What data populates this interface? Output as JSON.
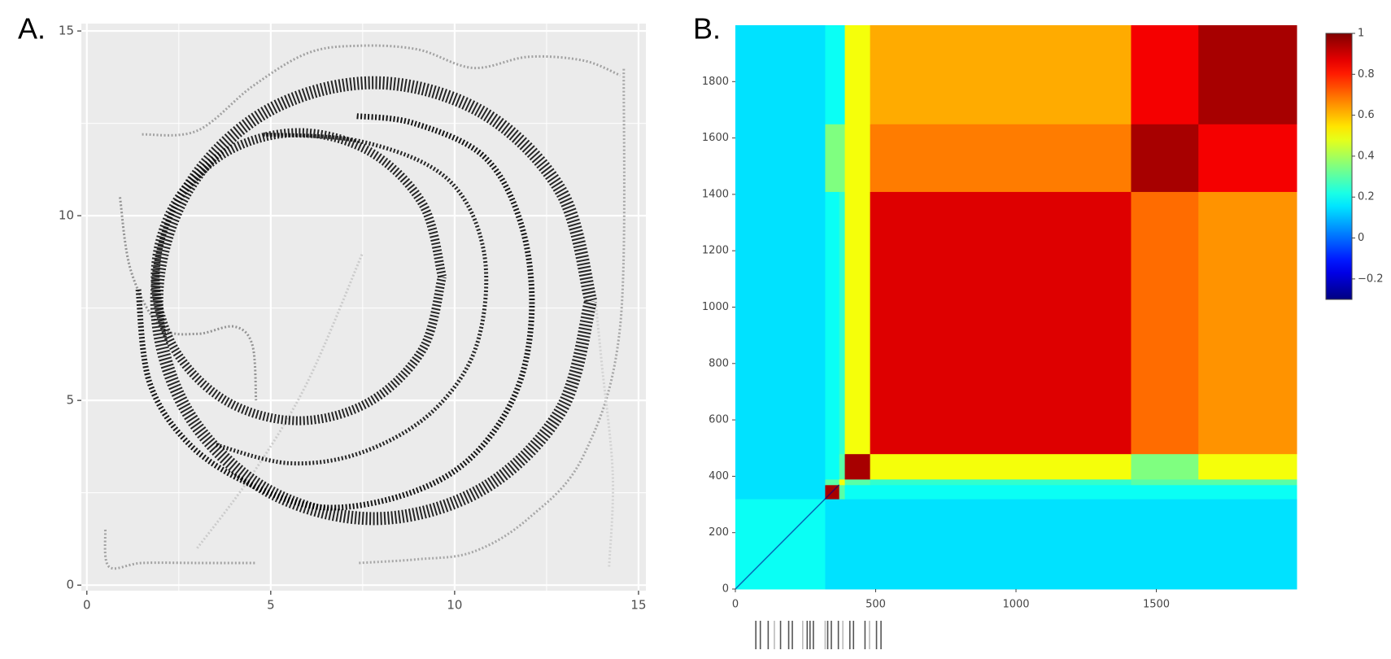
{
  "panel_labels": [
    "A.",
    "B."
  ],
  "chart_data": [
    {
      "type": "trajectory",
      "xlim": [
        -0.15,
        15.2
      ],
      "ylim": [
        -0.15,
        15.2
      ],
      "xticks": [
        0,
        5,
        10,
        15
      ],
      "yticks": [
        0,
        5,
        10,
        15
      ],
      "minor_grid": [
        2.5,
        7.5,
        12.5
      ],
      "grid": true,
      "series": [
        {
          "color": "#9a9a9a",
          "line_width": 3,
          "x": [
            0.5,
            0.6,
            1.5,
            3,
            4.6
          ],
          "y": [
            1.5,
            0.5,
            0.6,
            0.6,
            0.6
          ]
        },
        {
          "color": "#a0a0a0",
          "line_width": 3,
          "x": [
            7.4,
            9,
            10.5,
            12,
            13.5,
            14.5,
            14.6
          ],
          "y": [
            0.6,
            0.7,
            0.9,
            1.8,
            3.5,
            7,
            14
          ]
        },
        {
          "color": "#9a9a9a",
          "line_width": 3,
          "x": [
            1.5,
            3,
            4.5,
            6,
            7.4,
            9,
            10.5,
            12,
            13.5,
            14.5
          ],
          "y": [
            12.2,
            12.3,
            13.5,
            14.4,
            14.6,
            14.5,
            14.0,
            14.3,
            14.2,
            13.8
          ]
        },
        {
          "color": "#8a8a8a",
          "line_width": 3,
          "x": [
            0.9,
            1.2,
            2,
            3,
            4,
            4.5,
            4.6
          ],
          "y": [
            10.5,
            8.5,
            7,
            6.8,
            7,
            6.5,
            5
          ]
        },
        {
          "color": "#c8c8c8",
          "line_width": 3,
          "x": [
            3,
            4.5,
            6,
            7.5
          ],
          "y": [
            1,
            3,
            5.5,
            9
          ]
        },
        {
          "color": "#cfcfcf",
          "line_width": 3,
          "x": [
            14.2,
            14.3,
            14.0,
            13.8
          ],
          "y": [
            0.5,
            3,
            6,
            8
          ]
        },
        {
          "color": "#111111",
          "line_width": 16,
          "x": [
            13.7,
            12.9,
            10.75,
            7.8,
            4.85,
            2.7,
            1.9,
            2.7,
            4.85,
            7.8,
            10.75,
            12.9,
            13.7
          ],
          "y": [
            7.7,
            10.65,
            12.8,
            13.6,
            12.8,
            10.65,
            7.7,
            4.75,
            2.6,
            1.8,
            2.6,
            4.75,
            7.7
          ]
        },
        {
          "color": "#111111",
          "line_width": 11,
          "x": [
            9.66,
            9.14,
            7.7,
            5.76,
            3.81,
            2.38,
            1.86,
            2.38,
            3.81,
            5.76,
            7.7,
            9.14,
            9.66
          ],
          "y": [
            8.35,
            10.3,
            11.73,
            12.25,
            11.73,
            10.3,
            8.35,
            6.4,
            4.97,
            4.45,
            4.97,
            6.4,
            8.35
          ]
        },
        {
          "color": "#111111",
          "line_width": 5,
          "x": [
            4.8,
            7.5,
            9.8,
            10.8,
            10.6,
            9.4,
            7.5,
            5.5,
            3.5
          ],
          "y": [
            12.2,
            12.0,
            11.0,
            9.0,
            6.5,
            4.7,
            3.6,
            3.3,
            3.8
          ]
        },
        {
          "color": "#000000",
          "line_width": 7,
          "x": [
            1.4,
            1.7,
            2.8,
            4.5,
            6.5,
            8.8,
            10.5,
            11.7,
            12.1,
            11.8,
            10.8,
            8.9,
            7.3
          ],
          "y": [
            8.0,
            5.5,
            3.8,
            2.7,
            2.1,
            2.5,
            3.5,
            5.3,
            7.5,
            9.8,
            11.6,
            12.5,
            12.7
          ]
        }
      ]
    },
    {
      "type": "heatmap",
      "xlim": [
        0,
        2000
      ],
      "ylim": [
        0,
        2000
      ],
      "xticks": [
        0,
        500,
        1000,
        1500
      ],
      "yticks": [
        0,
        200,
        400,
        600,
        800,
        1000,
        1200,
        1400,
        1600,
        1800
      ],
      "x_edges": [
        0,
        320,
        370,
        390,
        480,
        1410,
        1650,
        2000
      ],
      "y_edges": [
        0,
        320,
        370,
        390,
        480,
        1410,
        1650,
        2000
      ],
      "values": [
        [
          0.2,
          0.15,
          0.15,
          0.15,
          0.15,
          0.15,
          0.15
        ],
        [
          0.15,
          0.95,
          0.3,
          0.2,
          0.2,
          0.2,
          0.2
        ],
        [
          0.15,
          0.3,
          0.5,
          0.3,
          0.25,
          0.3,
          0.3
        ],
        [
          0.15,
          0.2,
          0.3,
          0.95,
          0.5,
          0.35,
          0.5
        ],
        [
          0.15,
          0.2,
          0.25,
          0.5,
          0.88,
          0.7,
          0.65
        ],
        [
          0.15,
          0.35,
          0.35,
          0.5,
          0.68,
          0.95,
          0.85
        ],
        [
          0.15,
          0.2,
          0.2,
          0.5,
          0.62,
          0.85,
          0.95
        ]
      ],
      "colorscale": "jet",
      "clim": [
        -0.3,
        1
      ],
      "colorbar_ticks": [
        {
          "value": -0.2,
          "label": "−0.2"
        },
        0,
        0.2,
        0.4,
        0.6,
        0.8,
        1
      ],
      "rug": [
        73,
        89,
        117,
        139,
        161,
        190,
        203,
        240,
        256,
        266,
        278,
        320,
        329,
        342,
        367,
        383,
        408,
        421,
        462,
        478,
        503,
        519
      ]
    }
  ]
}
